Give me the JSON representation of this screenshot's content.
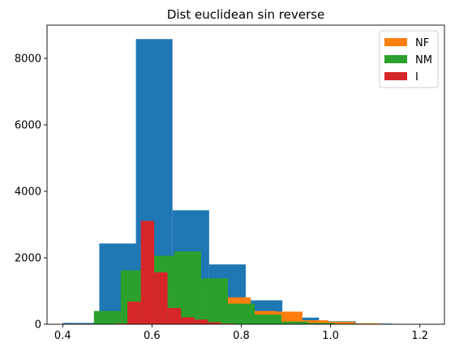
{
  "chart_data": {
    "type": "bar",
    "title": "Dist euclidean sin reverse",
    "xlabel": "",
    "ylabel": "",
    "xlim": [
      0.365,
      1.255
    ],
    "ylim": [
      0,
      9000
    ],
    "xticks": [
      0.4,
      0.6,
      0.8,
      1.0,
      1.2
    ],
    "xtick_labels": [
      "0.4",
      "0.6",
      "0.8",
      "1.0",
      "1.2"
    ],
    "yticks": [
      0,
      2000,
      4000,
      6000,
      8000
    ],
    "ytick_labels": [
      "0",
      "2000",
      "4000",
      "6000",
      "8000"
    ],
    "grid": false,
    "legend_position": "top-right",
    "legend": [
      {
        "label": "NF",
        "color": "#ff7f0e"
      },
      {
        "label": "NM",
        "color": "#2ca02c"
      },
      {
        "label": "I",
        "color": "#d62728"
      }
    ],
    "series": [
      {
        "color": "#1f77b4",
        "bins": [
          {
            "x0": 0.4,
            "x1": 0.482,
            "value": 40
          },
          {
            "x0": 0.482,
            "x1": 0.564,
            "value": 2430
          },
          {
            "x0": 0.564,
            "x1": 0.646,
            "value": 8580
          },
          {
            "x0": 0.646,
            "x1": 0.728,
            "value": 3430
          },
          {
            "x0": 0.728,
            "x1": 0.81,
            "value": 1800
          },
          {
            "x0": 0.81,
            "x1": 0.892,
            "value": 720
          },
          {
            "x0": 0.892,
            "x1": 0.974,
            "value": 200
          },
          {
            "x0": 0.974,
            "x1": 1.056,
            "value": 90
          },
          {
            "x0": 1.056,
            "x1": 1.138,
            "value": 20
          }
        ]
      },
      {
        "name": "NF",
        "color": "#ff7f0e",
        "bins": [
          {
            "x0": 0.415,
            "x1": 0.473,
            "value": 15
          },
          {
            "x0": 0.473,
            "x1": 0.531,
            "value": 280
          },
          {
            "x0": 0.531,
            "x1": 0.589,
            "value": 580
          },
          {
            "x0": 0.589,
            "x1": 0.647,
            "value": 890
          },
          {
            "x0": 0.647,
            "x1": 0.705,
            "value": 950
          },
          {
            "x0": 0.705,
            "x1": 0.763,
            "value": 1030
          },
          {
            "x0": 0.763,
            "x1": 0.821,
            "value": 810
          },
          {
            "x0": 0.821,
            "x1": 0.879,
            "value": 400
          },
          {
            "x0": 0.879,
            "x1": 0.937,
            "value": 380
          },
          {
            "x0": 0.937,
            "x1": 0.995,
            "value": 120
          },
          {
            "x0": 0.995,
            "x1": 1.053,
            "value": 80
          },
          {
            "x0": 1.053,
            "x1": 1.111,
            "value": 30
          }
        ]
      },
      {
        "name": "NM",
        "color": "#2ca02c",
        "bins": [
          {
            "x0": 0.47,
            "x1": 0.53,
            "value": 400
          },
          {
            "x0": 0.53,
            "x1": 0.59,
            "value": 1620
          },
          {
            "x0": 0.59,
            "x1": 0.65,
            "value": 2060
          },
          {
            "x0": 0.65,
            "x1": 0.71,
            "value": 2190
          },
          {
            "x0": 0.71,
            "x1": 0.77,
            "value": 1380
          },
          {
            "x0": 0.77,
            "x1": 0.83,
            "value": 620
          },
          {
            "x0": 0.83,
            "x1": 0.89,
            "value": 290
          },
          {
            "x0": 0.89,
            "x1": 0.95,
            "value": 80
          },
          {
            "x0": 0.95,
            "x1": 1.01,
            "value": 40
          },
          {
            "x0": 1.01,
            "x1": 1.07,
            "value": 15
          }
        ]
      },
      {
        "name": "I",
        "color": "#d62728",
        "bins": [
          {
            "x0": 0.515,
            "x1": 0.545,
            "value": 20
          },
          {
            "x0": 0.545,
            "x1": 0.575,
            "value": 680
          },
          {
            "x0": 0.575,
            "x1": 0.605,
            "value": 3110
          },
          {
            "x0": 0.605,
            "x1": 0.635,
            "value": 1560
          },
          {
            "x0": 0.635,
            "x1": 0.665,
            "value": 490
          },
          {
            "x0": 0.665,
            "x1": 0.695,
            "value": 210
          },
          {
            "x0": 0.695,
            "x1": 0.725,
            "value": 140
          },
          {
            "x0": 0.725,
            "x1": 0.755,
            "value": 60
          },
          {
            "x0": 0.755,
            "x1": 0.785,
            "value": 20
          }
        ]
      }
    ]
  }
}
